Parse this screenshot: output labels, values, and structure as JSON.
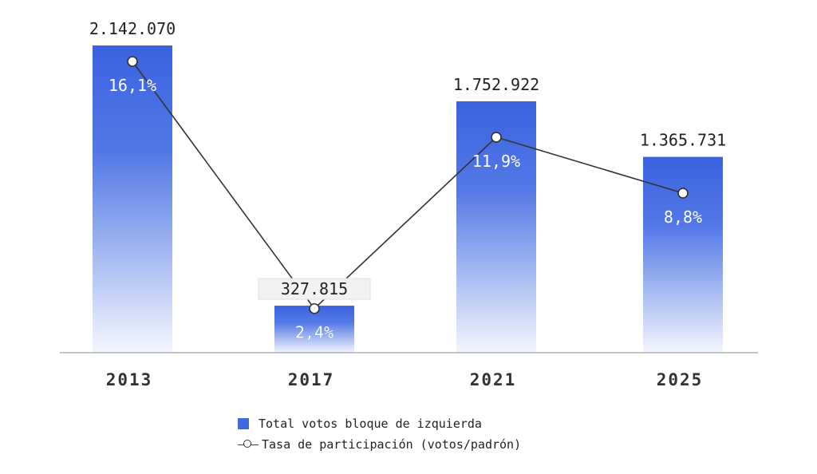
{
  "chart_data": {
    "type": "bar",
    "categories": [
      "2013",
      "2017",
      "2021",
      "2025"
    ],
    "series": [
      {
        "name": "Total votos bloque de izquierda",
        "values": [
          2142070,
          327815,
          1752922,
          1365731
        ],
        "labels": [
          "2.142.070",
          "327.815",
          "1.752.922",
          "1.365.731"
        ],
        "color": "#4169E1",
        "kind": "bar"
      },
      {
        "name": "Tasa de participación (votos/padrón)",
        "values": [
          16.1,
          2.4,
          11.9,
          8.8
        ],
        "labels": [
          "16,1%",
          "2,4%",
          "11,9%",
          "8,8%"
        ],
        "color": "#333333",
        "kind": "line"
      }
    ],
    "ylim": [
      0,
      2142070
    ],
    "y2lim": [
      0,
      16.1
    ],
    "grid": false,
    "legend_position": "bottom-center"
  }
}
